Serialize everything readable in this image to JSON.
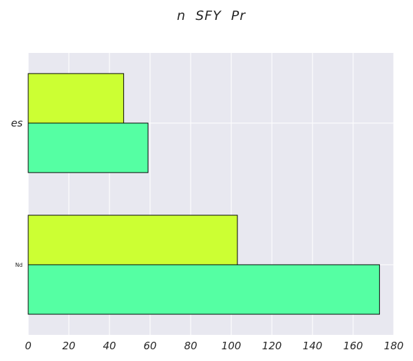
{
  "chart_data": {
    "type": "bar",
    "orientation": "horizontal",
    "title": "n  SFY  Pr",
    "xlabel": "",
    "ylabel": "",
    "categories": [
      "es",
      "Nd"
    ],
    "series": [
      {
        "values": [
          47,
          103
        ],
        "color": "#ccff33"
      },
      {
        "values": [
          59,
          173
        ],
        "color": "#55ffa3"
      }
    ],
    "xlim": [
      0,
      180
    ],
    "xticks": [
      0,
      20,
      40,
      60,
      80,
      100,
      120,
      140,
      160,
      180
    ],
    "grid": true,
    "legend": "none"
  },
  "colors": {
    "plot_background": "#e8e8f0",
    "grid": "#ffffff",
    "bar_edge": "#000000"
  }
}
